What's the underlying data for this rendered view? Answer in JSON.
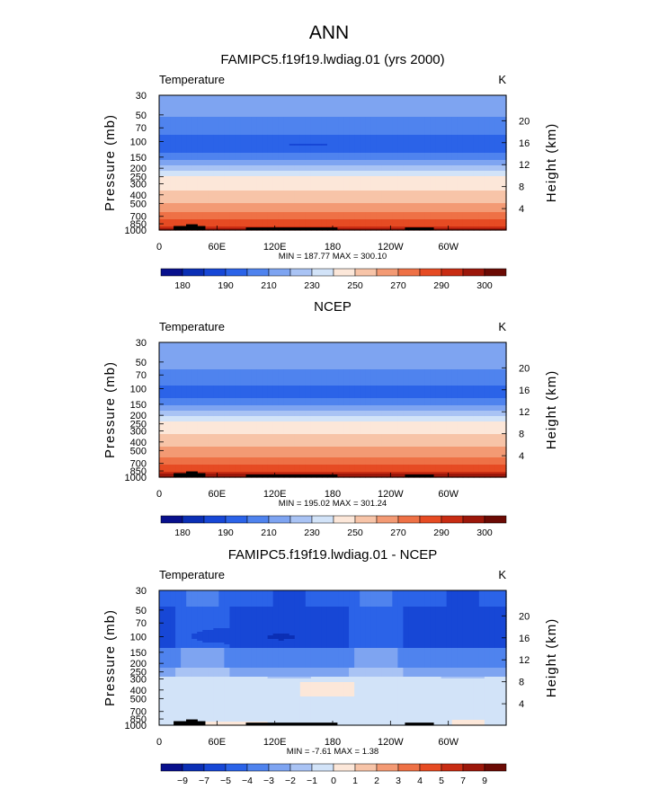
{
  "chart_data": {
    "type": "heatmap",
    "title": "ANN",
    "panels": [
      {
        "title": "FAMIPC5.f19f19.lwdiag.01 (yrs 2000)",
        "variable": "Temperature",
        "units": "K",
        "ylabel_left": "Pressure (mb)",
        "ylabel_right": "Height (km)",
        "pressure_ticks": [
          "30",
          "50",
          "70",
          "100",
          "150",
          "200",
          "250",
          "300",
          "400",
          "500",
          "700",
          "850",
          "1000"
        ],
        "height_ticks": [
          "20",
          "16",
          "12",
          "8",
          "4"
        ],
        "lon_ticks": [
          "0",
          "60E",
          "120E",
          "180",
          "120W",
          "60W"
        ],
        "min_max_text": "MIN = 187.77   MAX = 300.10",
        "field": "model_temperature",
        "colorbar_labels": [
          "180",
          "190",
          "210",
          "230",
          "250",
          "270",
          "290",
          "300"
        ],
        "colorbar_levels": [
          180,
          185,
          190,
          200,
          210,
          220,
          230,
          240,
          250,
          260,
          270,
          280,
          290,
          295,
          300
        ],
        "colors": [
          "#08108c",
          "#0b2fb5",
          "#1747d6",
          "#2b63e8",
          "#4f83ee",
          "#7ea4f1",
          "#a9c3f4",
          "#d2e3f8",
          "#fce7d9",
          "#f7c4a8",
          "#f39a74",
          "#ee7146",
          "#e64b23",
          "#c82c13",
          "#9c170a",
          "#6b0a04"
        ]
      },
      {
        "title": "NCEP",
        "variable": "Temperature",
        "units": "K",
        "ylabel_left": "Pressure (mb)",
        "ylabel_right": "Height (km)",
        "pressure_ticks": [
          "30",
          "50",
          "70",
          "100",
          "150",
          "200",
          "250",
          "300",
          "400",
          "500",
          "700",
          "850",
          "1000"
        ],
        "height_ticks": [
          "20",
          "16",
          "12",
          "8",
          "4"
        ],
        "lon_ticks": [
          "0",
          "60E",
          "120E",
          "180",
          "120W",
          "60W"
        ],
        "min_max_text": "MIN = 195.02   MAX = 301.24",
        "field": "obs_temperature",
        "colorbar_labels": [
          "180",
          "190",
          "210",
          "230",
          "250",
          "270",
          "290",
          "300"
        ],
        "colorbar_levels": [
          180,
          185,
          190,
          200,
          210,
          220,
          230,
          240,
          250,
          260,
          270,
          280,
          290,
          295,
          300
        ],
        "colors": [
          "#08108c",
          "#0b2fb5",
          "#1747d6",
          "#2b63e8",
          "#4f83ee",
          "#7ea4f1",
          "#a9c3f4",
          "#d2e3f8",
          "#fce7d9",
          "#f7c4a8",
          "#f39a74",
          "#ee7146",
          "#e64b23",
          "#c82c13",
          "#9c170a",
          "#6b0a04"
        ]
      },
      {
        "title": "FAMIPC5.f19f19.lwdiag.01 - NCEP",
        "variable": "Temperature",
        "units": "K",
        "ylabel_left": "Pressure (mb)",
        "ylabel_right": "Height (km)",
        "pressure_ticks": [
          "30",
          "50",
          "70",
          "100",
          "150",
          "200",
          "250",
          "300",
          "400",
          "500",
          "700",
          "850",
          "1000"
        ],
        "height_ticks": [
          "20",
          "16",
          "12",
          "8",
          "4"
        ],
        "lon_ticks": [
          "0",
          "60E",
          "120E",
          "180",
          "120W",
          "60W"
        ],
        "min_max_text": "MIN =  -7.61   MAX =    1.38",
        "field": "difference",
        "colorbar_labels": [
          "−9",
          "−7",
          "−5",
          "−4",
          "−3",
          "−2",
          "−1",
          "0",
          "1",
          "2",
          "3",
          "4",
          "5",
          "7",
          "9"
        ],
        "colorbar_levels": [
          -9,
          -7,
          -5,
          -4,
          -3,
          -2,
          -1,
          0,
          1,
          2,
          3,
          4,
          5,
          7,
          9
        ],
        "colors": [
          "#08108c",
          "#0b2fb5",
          "#1747d6",
          "#2b63e8",
          "#4f83ee",
          "#7ea4f1",
          "#a9c3f4",
          "#d2e3f8",
          "#fce7d9",
          "#f7c4a8",
          "#f39a74",
          "#ee7146",
          "#e64b23",
          "#c82c13",
          "#9c170a",
          "#6b0a04"
        ]
      }
    ]
  }
}
